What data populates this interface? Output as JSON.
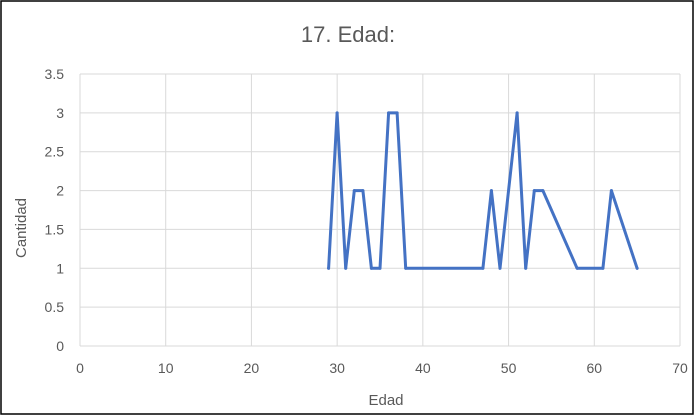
{
  "chart_data": {
    "type": "line",
    "title": "17. Edad:",
    "xlabel": "Edad",
    "ylabel": "Cantidad",
    "xlim": [
      0,
      70
    ],
    "ylim": [
      0,
      3.5
    ],
    "x_ticks": [
      "0",
      "10",
      "20",
      "30",
      "40",
      "50",
      "60",
      "70"
    ],
    "y_ticks": [
      "0",
      "0.5",
      "1",
      "1.5",
      "2",
      "2.5",
      "3",
      "3.5"
    ],
    "grid": true,
    "series": [
      {
        "color": "#4472c4",
        "points": [
          [
            29,
            1
          ],
          [
            30,
            3
          ],
          [
            31,
            1
          ],
          [
            32,
            2
          ],
          [
            33,
            2
          ],
          [
            34,
            1
          ],
          [
            35,
            1
          ],
          [
            36,
            3
          ],
          [
            37,
            3
          ],
          [
            38,
            1
          ],
          [
            47,
            1
          ],
          [
            48,
            2
          ],
          [
            49,
            1
          ],
          [
            51,
            3
          ],
          [
            52,
            1
          ],
          [
            53,
            2
          ],
          [
            54,
            2
          ],
          [
            58,
            1
          ],
          [
            61,
            1
          ],
          [
            62,
            2
          ],
          [
            65,
            1
          ]
        ]
      }
    ]
  }
}
